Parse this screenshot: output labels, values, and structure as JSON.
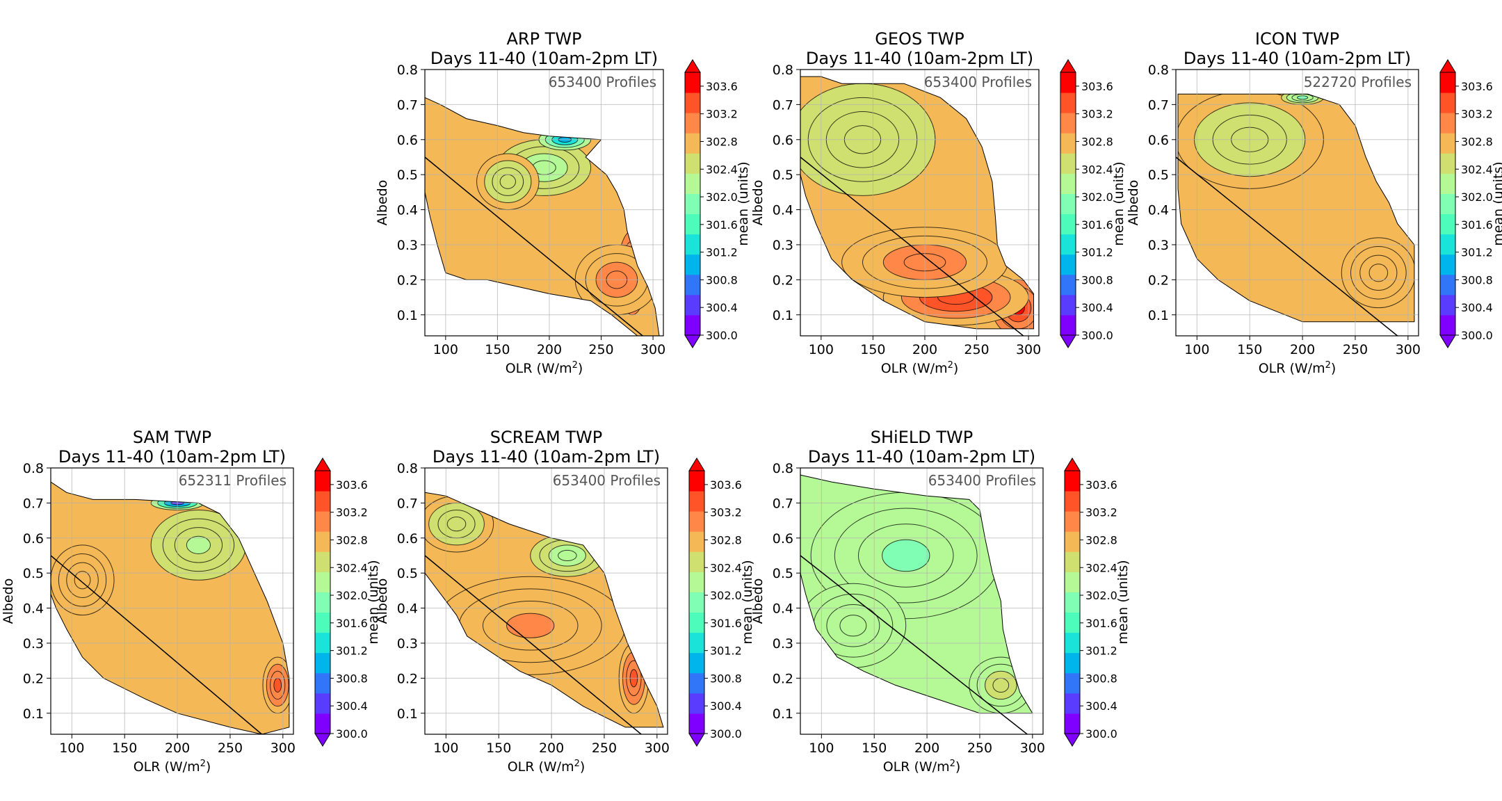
{
  "figure": {
    "colormap": "rainbow",
    "cb_colors": [
      "#8000ff",
      "#5a3cfe",
      "#3176f8",
      "#00b5eb",
      "#1ae4d9",
      "#4dfbbb",
      "#80ffb4",
      "#b4f996",
      "#d0e070",
      "#f4b856",
      "#ff8848",
      "#ff5328",
      "#ff0000"
    ]
  },
  "chart_data": [
    {
      "type": "contour",
      "title": [
        "ARP TWP",
        "Days 11-40 (10am-2pm LT)"
      ],
      "profiles": "653400 Profiles",
      "xlabel": "OLR (W/m²)",
      "xlabel_main": "OLR (W/m",
      "xlabel_sup": "2",
      "xlabel_end": ")",
      "ylabel": "Albedo",
      "xlim": [
        80,
        310
      ],
      "ylim": [
        0.04,
        0.8
      ],
      "xticks": [
        100,
        150,
        200,
        250,
        300
      ],
      "yticks": [
        0.1,
        0.2,
        0.3,
        0.4,
        0.5,
        0.6,
        0.7,
        0.8
      ],
      "ref_line": {
        "x": [
          80,
          290
        ],
        "y": [
          0.55,
          0.04
        ]
      },
      "colorbar": {
        "label": "mean (units)",
        "range": [
          300.0,
          303.8
        ],
        "ticks": [
          "303.6",
          "303.2",
          "302.8",
          "302.4",
          "302.0",
          "301.6",
          "301.2",
          "300.8",
          "300.4",
          "300.0"
        ],
        "extend": "both"
      },
      "region": [
        [
          80,
          0.72
        ],
        [
          95,
          0.7
        ],
        [
          120,
          0.66
        ],
        [
          150,
          0.64
        ],
        [
          175,
          0.62
        ],
        [
          200,
          0.61
        ],
        [
          250,
          0.6
        ],
        [
          235,
          0.55
        ],
        [
          255,
          0.5
        ],
        [
          265,
          0.45
        ],
        [
          272,
          0.4
        ],
        [
          275,
          0.34
        ],
        [
          285,
          0.24
        ],
        [
          295,
          0.18
        ],
        [
          302,
          0.12
        ],
        [
          306,
          0.04
        ],
        [
          285,
          0.04
        ],
        [
          260,
          0.1
        ],
        [
          240,
          0.14
        ],
        [
          200,
          0.16
        ],
        [
          170,
          0.18
        ],
        [
          140,
          0.2
        ],
        [
          120,
          0.2
        ],
        [
          100,
          0.22
        ],
        [
          92,
          0.3
        ],
        [
          85,
          0.38
        ],
        [
          80,
          0.45
        ]
      ],
      "blobs": [
        {
          "x": 280,
          "y": 0.22,
          "rx": 14,
          "ry": 0.12,
          "value": 303.8
        },
        {
          "x": 265,
          "y": 0.2,
          "rx": 40,
          "ry": 0.1,
          "value": 303.1
        },
        {
          "x": 195,
          "y": 0.52,
          "rx": 45,
          "ry": 0.08,
          "value": 302.2
        },
        {
          "x": 160,
          "y": 0.48,
          "rx": 30,
          "ry": 0.08,
          "value": 302.45
        },
        {
          "x": 215,
          "y": 0.6,
          "rx": 25,
          "ry": 0.03,
          "value": 300.9
        }
      ],
      "base_value": 302.8
    },
    {
      "type": "contour",
      "title": [
        "GEOS TWP",
        "Days 11-40 (10am-2pm LT)"
      ],
      "profiles": "653400 Profiles",
      "xlabel": "OLR (W/m²)",
      "xlabel_main": "OLR (W/m",
      "xlabel_sup": "2",
      "xlabel_end": ")",
      "ylabel": "Albedo",
      "xlim": [
        80,
        310
      ],
      "ylim": [
        0.04,
        0.8
      ],
      "xticks": [
        100,
        150,
        200,
        250,
        300
      ],
      "yticks": [
        0.1,
        0.2,
        0.3,
        0.4,
        0.5,
        0.6,
        0.7,
        0.8
      ],
      "ref_line": {
        "x": [
          80,
          295
        ],
        "y": [
          0.55,
          0.04
        ]
      },
      "colorbar": {
        "label": "mean (units)",
        "range": [
          300.0,
          303.8
        ],
        "ticks": [
          "303.6",
          "303.2",
          "302.8",
          "302.4",
          "302.0",
          "301.6",
          "301.2",
          "300.8",
          "300.4",
          "300.0"
        ],
        "extend": "both"
      },
      "region": [
        [
          80,
          0.78
        ],
        [
          100,
          0.78
        ],
        [
          120,
          0.76
        ],
        [
          180,
          0.76
        ],
        [
          215,
          0.72
        ],
        [
          240,
          0.66
        ],
        [
          255,
          0.58
        ],
        [
          265,
          0.48
        ],
        [
          268,
          0.38
        ],
        [
          270,
          0.3
        ],
        [
          278,
          0.24
        ],
        [
          295,
          0.2
        ],
        [
          305,
          0.16
        ],
        [
          305,
          0.06
        ],
        [
          250,
          0.06
        ],
        [
          200,
          0.08
        ],
        [
          160,
          0.14
        ],
        [
          130,
          0.2
        ],
        [
          110,
          0.26
        ],
        [
          95,
          0.36
        ],
        [
          85,
          0.44
        ],
        [
          80,
          0.5
        ]
      ],
      "blobs": [
        {
          "x": 290,
          "y": 0.12,
          "rx": 25,
          "ry": 0.08,
          "value": 303.85
        },
        {
          "x": 230,
          "y": 0.15,
          "rx": 70,
          "ry": 0.08,
          "value": 303.55
        },
        {
          "x": 200,
          "y": 0.25,
          "rx": 80,
          "ry": 0.1,
          "value": 303.2
        },
        {
          "x": 140,
          "y": 0.6,
          "rx": 70,
          "ry": 0.16,
          "value": 302.5
        }
      ],
      "base_value": 302.75
    },
    {
      "type": "contour",
      "title": [
        "ICON TWP",
        "Days 11-40 (10am-2pm LT)"
      ],
      "profiles": "522720 Profiles",
      "xlabel": "OLR (W/m²)",
      "xlabel_main": "OLR (W/m",
      "xlabel_sup": "2",
      "xlabel_end": ")",
      "ylabel": "Albedo",
      "xlim": [
        80,
        310
      ],
      "ylim": [
        0.04,
        0.8
      ],
      "xticks": [
        100,
        150,
        200,
        250,
        300
      ],
      "yticks": [
        0.1,
        0.2,
        0.3,
        0.4,
        0.5,
        0.6,
        0.7,
        0.8
      ],
      "ref_line": {
        "x": [
          80,
          290
        ],
        "y": [
          0.55,
          0.04
        ]
      },
      "colorbar": {
        "label": "mean (units)",
        "range": [
          300.0,
          303.8
        ],
        "ticks": [
          "303.6",
          "303.2",
          "302.8",
          "302.4",
          "302.0",
          "301.6",
          "301.2",
          "300.8",
          "300.4",
          "300.0"
        ],
        "extend": "both"
      },
      "region": [
        [
          82,
          0.73
        ],
        [
          140,
          0.73
        ],
        [
          205,
          0.73
        ],
        [
          235,
          0.7
        ],
        [
          250,
          0.64
        ],
        [
          260,
          0.55
        ],
        [
          270,
          0.48
        ],
        [
          282,
          0.42
        ],
        [
          290,
          0.36
        ],
        [
          306,
          0.3
        ],
        [
          306,
          0.08
        ],
        [
          200,
          0.08
        ],
        [
          150,
          0.14
        ],
        [
          120,
          0.2
        ],
        [
          100,
          0.26
        ],
        [
          85,
          0.36
        ],
        [
          82,
          0.46
        ]
      ],
      "blobs": [
        {
          "x": 272,
          "y": 0.22,
          "rx": 35,
          "ry": 0.1,
          "value": 303.0
        },
        {
          "x": 150,
          "y": 0.6,
          "rx": 70,
          "ry": 0.14,
          "value": 302.55
        },
        {
          "x": 200,
          "y": 0.72,
          "rx": 20,
          "ry": 0.02,
          "value": 301.9
        }
      ],
      "base_value": 302.8
    },
    {
      "type": "contour",
      "title": [
        "SAM TWP",
        "Days 11-40 (10am-2pm LT)"
      ],
      "profiles": "652311 Profiles",
      "xlabel": "OLR (W/m²)",
      "xlabel_main": "OLR (W/m",
      "xlabel_sup": "2",
      "xlabel_end": ")",
      "ylabel": "Albedo",
      "xlim": [
        80,
        310
      ],
      "ylim": [
        0.04,
        0.8
      ],
      "xticks": [
        100,
        150,
        200,
        250,
        300
      ],
      "yticks": [
        0.1,
        0.2,
        0.3,
        0.4,
        0.5,
        0.6,
        0.7,
        0.8
      ],
      "ref_line": {
        "x": [
          80,
          280
        ],
        "y": [
          0.55,
          0.04
        ]
      },
      "colorbar": {
        "label": "mean (units)",
        "range": [
          300.0,
          303.8
        ],
        "ticks": [
          "303.6",
          "303.2",
          "302.8",
          "302.4",
          "302.0",
          "301.6",
          "301.2",
          "300.8",
          "300.4",
          "300.0"
        ],
        "extend": "both"
      },
      "region": [
        [
          80,
          0.76
        ],
        [
          95,
          0.73
        ],
        [
          120,
          0.71
        ],
        [
          160,
          0.71
        ],
        [
          220,
          0.7
        ],
        [
          240,
          0.67
        ],
        [
          258,
          0.6
        ],
        [
          270,
          0.52
        ],
        [
          285,
          0.42
        ],
        [
          300,
          0.3
        ],
        [
          306,
          0.2
        ],
        [
          306,
          0.06
        ],
        [
          280,
          0.04
        ],
        [
          250,
          0.06
        ],
        [
          200,
          0.1
        ],
        [
          170,
          0.14
        ],
        [
          130,
          0.2
        ],
        [
          110,
          0.26
        ],
        [
          95,
          0.34
        ],
        [
          85,
          0.4
        ],
        [
          80,
          0.44
        ]
      ],
      "blobs": [
        {
          "x": 295,
          "y": 0.18,
          "rx": 14,
          "ry": 0.08,
          "value": 303.4
        },
        {
          "x": 110,
          "y": 0.48,
          "rx": 30,
          "ry": 0.1,
          "value": 302.95
        },
        {
          "x": 220,
          "y": 0.58,
          "rx": 45,
          "ry": 0.1,
          "value": 302.35
        },
        {
          "x": 200,
          "y": 0.7,
          "rx": 25,
          "ry": 0.02,
          "value": 300.2
        }
      ],
      "base_value": 302.7
    },
    {
      "type": "contour",
      "title": [
        "SCREAM TWP",
        "Days 11-40 (10am-2pm LT)"
      ],
      "profiles": "653400 Profiles",
      "xlabel": "OLR (W/m²)",
      "xlabel_main": "OLR (W/m",
      "xlabel_sup": "2",
      "xlabel_end": ")",
      "ylabel": "Albedo",
      "xlim": [
        80,
        310
      ],
      "ylim": [
        0.04,
        0.8
      ],
      "xticks": [
        100,
        150,
        200,
        250,
        300
      ],
      "yticks": [
        0.1,
        0.2,
        0.3,
        0.4,
        0.5,
        0.6,
        0.7,
        0.8
      ],
      "ref_line": {
        "x": [
          80,
          285
        ],
        "y": [
          0.55,
          0.04
        ]
      },
      "colorbar": {
        "label": "mean (units)",
        "range": [
          300.0,
          303.8
        ],
        "ticks": [
          "303.6",
          "303.2",
          "302.8",
          "302.4",
          "302.0",
          "301.6",
          "301.2",
          "300.8",
          "300.4",
          "300.0"
        ],
        "extend": "both"
      },
      "region": [
        [
          80,
          0.73
        ],
        [
          100,
          0.72
        ],
        [
          130,
          0.68
        ],
        [
          160,
          0.64
        ],
        [
          200,
          0.6
        ],
        [
          230,
          0.58
        ],
        [
          250,
          0.5
        ],
        [
          260,
          0.4
        ],
        [
          272,
          0.3
        ],
        [
          290,
          0.18
        ],
        [
          300,
          0.12
        ],
        [
          306,
          0.06
        ],
        [
          270,
          0.06
        ],
        [
          230,
          0.12
        ],
        [
          200,
          0.18
        ],
        [
          170,
          0.22
        ],
        [
          140,
          0.28
        ],
        [
          120,
          0.32
        ],
        [
          110,
          0.38
        ],
        [
          95,
          0.44
        ],
        [
          80,
          0.5
        ]
      ],
      "blobs": [
        {
          "x": 278,
          "y": 0.2,
          "rx": 14,
          "ry": 0.1,
          "value": 303.5
        },
        {
          "x": 180,
          "y": 0.35,
          "rx": 90,
          "ry": 0.14,
          "value": 303.05
        },
        {
          "x": 215,
          "y": 0.55,
          "rx": 35,
          "ry": 0.06,
          "value": 302.1
        },
        {
          "x": 110,
          "y": 0.64,
          "rx": 35,
          "ry": 0.08,
          "value": 302.45
        }
      ],
      "base_value": 302.8
    },
    {
      "type": "contour",
      "title": [
        "SHiELD TWP",
        "Days 11-40 (10am-2pm LT)"
      ],
      "profiles": "653400 Profiles",
      "xlabel": "OLR (W/m²)",
      "xlabel_main": "OLR (W/m",
      "xlabel_sup": "2",
      "xlabel_end": ")",
      "ylabel": "Albedo",
      "xlim": [
        80,
        310
      ],
      "ylim": [
        0.04,
        0.8
      ],
      "xticks": [
        100,
        150,
        200,
        250,
        300
      ],
      "yticks": [
        0.1,
        0.2,
        0.3,
        0.4,
        0.5,
        0.6,
        0.7,
        0.8
      ],
      "ref_line": {
        "x": [
          80,
          295
        ],
        "y": [
          0.55,
          0.04
        ]
      },
      "colorbar": {
        "label": "mean (units)",
        "range": [
          300.0,
          303.8
        ],
        "ticks": [
          "303.6",
          "303.2",
          "302.8",
          "302.4",
          "302.0",
          "301.6",
          "301.2",
          "300.8",
          "300.4",
          "300.0"
        ],
        "extend": "both"
      },
      "region": [
        [
          80,
          0.78
        ],
        [
          110,
          0.76
        ],
        [
          150,
          0.74
        ],
        [
          200,
          0.72
        ],
        [
          240,
          0.71
        ],
        [
          250,
          0.68
        ],
        [
          255,
          0.6
        ],
        [
          262,
          0.5
        ],
        [
          270,
          0.42
        ],
        [
          272,
          0.34
        ],
        [
          278,
          0.26
        ],
        [
          288,
          0.16
        ],
        [
          300,
          0.1
        ],
        [
          250,
          0.1
        ],
        [
          210,
          0.14
        ],
        [
          170,
          0.18
        ],
        [
          140,
          0.22
        ],
        [
          115,
          0.26
        ],
        [
          95,
          0.34
        ],
        [
          85,
          0.44
        ],
        [
          80,
          0.5
        ]
      ],
      "blobs": [
        {
          "x": 180,
          "y": 0.55,
          "rx": 90,
          "ry": 0.18,
          "value": 302.05
        },
        {
          "x": 130,
          "y": 0.35,
          "rx": 50,
          "ry": 0.12,
          "value": 302.35
        },
        {
          "x": 270,
          "y": 0.18,
          "rx": 30,
          "ry": 0.08,
          "value": 302.45
        }
      ],
      "base_value": 302.3
    }
  ]
}
